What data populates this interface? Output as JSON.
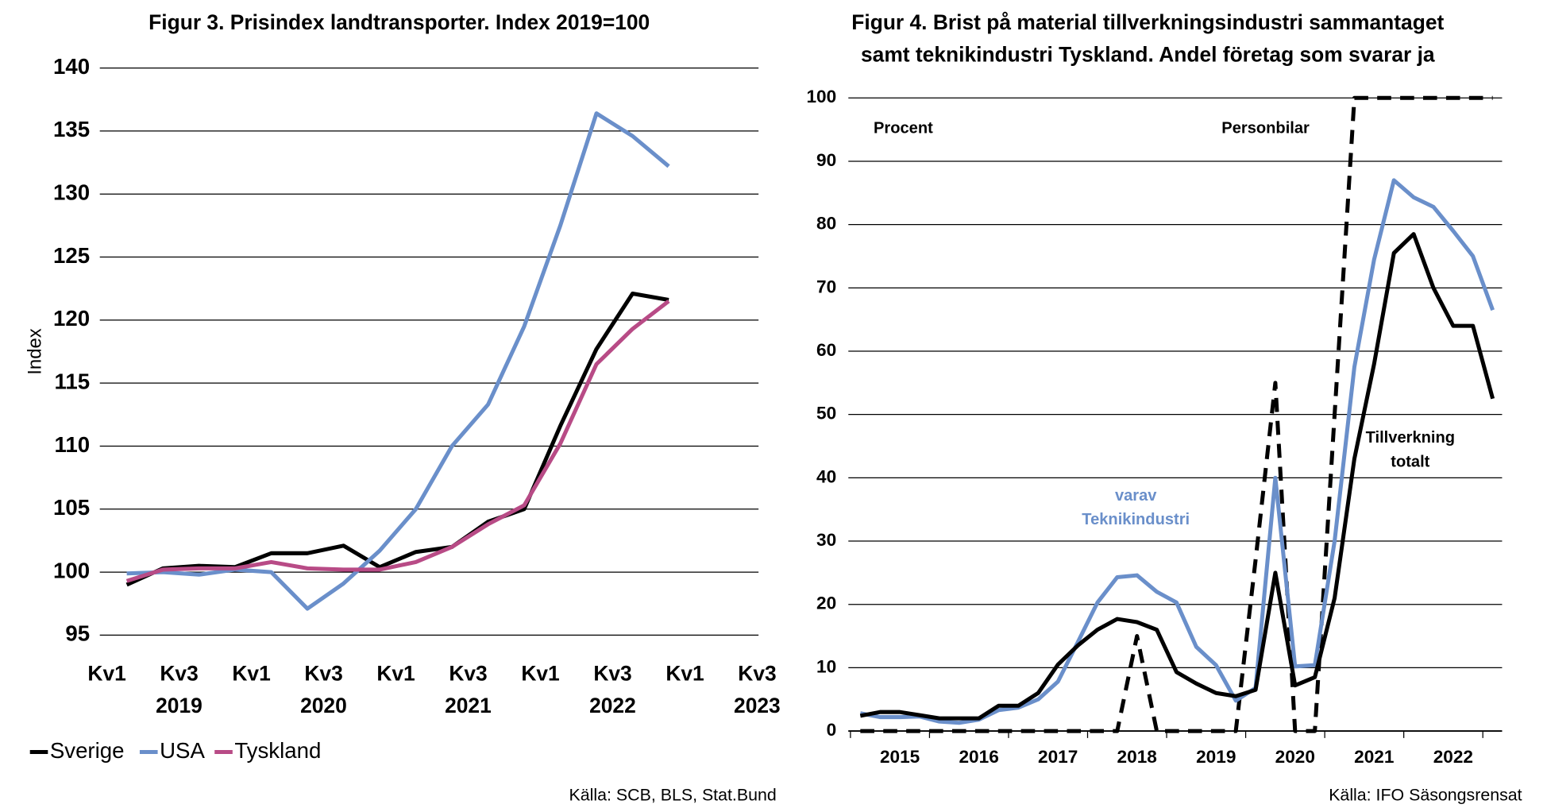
{
  "chart_data": [
    {
      "type": "line",
      "title": [
        "Figur 3. Prisindex landtransporter. Index 2019=100"
      ],
      "ylabel": "Index",
      "categories": [
        "Kv1",
        null,
        "Kv3",
        null,
        "Kv1",
        null,
        "Kv3",
        null,
        "Kv1",
        null,
        "Kv3",
        null,
        "Kv1",
        null,
        "Kv3",
        null,
        "Kv1",
        null,
        "Kv3",
        null
      ],
      "x_group_labels": [
        "2019",
        "2020",
        "2021",
        "2022",
        "2023"
      ],
      "ylim": [
        95,
        140
      ],
      "yticks": [
        95,
        100,
        105,
        110,
        115,
        120,
        125,
        130,
        135,
        140
      ],
      "grid": true,
      "legend": "bottom",
      "series": [
        {
          "name": "Sverige",
          "color": "#000000",
          "values": [
            99.0,
            100.3,
            100.5,
            100.4,
            101.5,
            101.5,
            102.1,
            100.4,
            101.6,
            102.0,
            104.0,
            105.0,
            111.6,
            117.7,
            122.1,
            121.6,
            null,
            null,
            null,
            null
          ]
        },
        {
          "name": "USA",
          "color": "#6a8fca",
          "values": [
            99.9,
            100.0,
            99.8,
            100.2,
            100.0,
            97.1,
            99.1,
            101.7,
            105.0,
            110.0,
            113.3,
            119.5,
            127.5,
            136.4,
            134.6,
            132.2,
            null,
            null,
            null,
            null
          ]
        },
        {
          "name": "Tyskland",
          "color": "#b84b86",
          "values": [
            99.3,
            100.2,
            100.3,
            100.3,
            100.8,
            100.3,
            100.2,
            100.2,
            100.8,
            102.0,
            103.8,
            105.3,
            110.2,
            116.5,
            119.3,
            121.5,
            null,
            null,
            null,
            null
          ]
        }
      ],
      "source": "Källa: SCB, BLS, Stat.Bund"
    },
    {
      "type": "line",
      "title": [
        "Figur 4. Brist på material tillverkningsindustri sammantaget",
        "samt teknikindustri Tyskland. Andel företag som svarar ja"
      ],
      "categories": [
        null,
        "2015",
        null,
        null,
        null,
        "2016",
        null,
        null,
        null,
        "2017",
        null,
        null,
        null,
        "2018",
        null,
        null,
        null,
        "2019",
        null,
        null,
        null,
        "2020",
        null,
        null,
        null,
        "2021",
        null,
        null,
        null,
        "2022",
        null,
        null,
        null
      ],
      "ylim": [
        0,
        100
      ],
      "yticks": [
        0,
        10,
        20,
        30,
        40,
        50,
        60,
        70,
        80,
        90,
        100
      ],
      "grid": true,
      "series": [
        {
          "color": "#000000",
          "dash": true,
          "values": [
            0,
            0,
            0,
            0,
            0,
            0,
            0,
            0,
            0,
            0,
            0,
            0,
            0,
            0,
            15,
            0,
            0,
            0,
            0,
            0,
            27,
            55,
            0,
            0,
            50,
            100,
            100,
            100,
            100,
            100,
            100,
            100,
            100
          ]
        },
        {
          "color": "#6a8fca",
          "values": [
            2.8,
            2.2,
            2.2,
            2.3,
            1.5,
            1.3,
            1.8,
            3.3,
            3.7,
            5,
            7.8,
            14,
            20.3,
            24.3,
            24.6,
            22,
            20.3,
            13.3,
            10.4,
            4.8,
            6.8,
            40,
            10.2,
            10.4,
            30,
            57.5,
            74.5,
            87,
            84.3,
            82.8,
            79,
            75,
            66.5
          ]
        },
        {
          "color": "#000000",
          "values": [
            2.4,
            3,
            3,
            2.5,
            2,
            2,
            2,
            4,
            4,
            6,
            10.5,
            13.5,
            16,
            17.7,
            17.2,
            16,
            9.3,
            7.5,
            6,
            5.5,
            6.5,
            25,
            7.2,
            8.5,
            21,
            43,
            58,
            75.5,
            78.5,
            70,
            64,
            64,
            52.5
          ]
        }
      ],
      "annotations": [
        {
          "lines": [
            "Procent"
          ],
          "color": "#000000"
        },
        {
          "lines": [
            "Personbilar"
          ],
          "color": "#000000"
        },
        {
          "lines": [
            "varav",
            "Teknikindustri"
          ],
          "color": "#6a8fca"
        },
        {
          "lines": [
            "Tillverkning",
            "totalt"
          ],
          "color": "#000000"
        }
      ],
      "source": "Källa: IFO Säsongsrensat"
    }
  ]
}
